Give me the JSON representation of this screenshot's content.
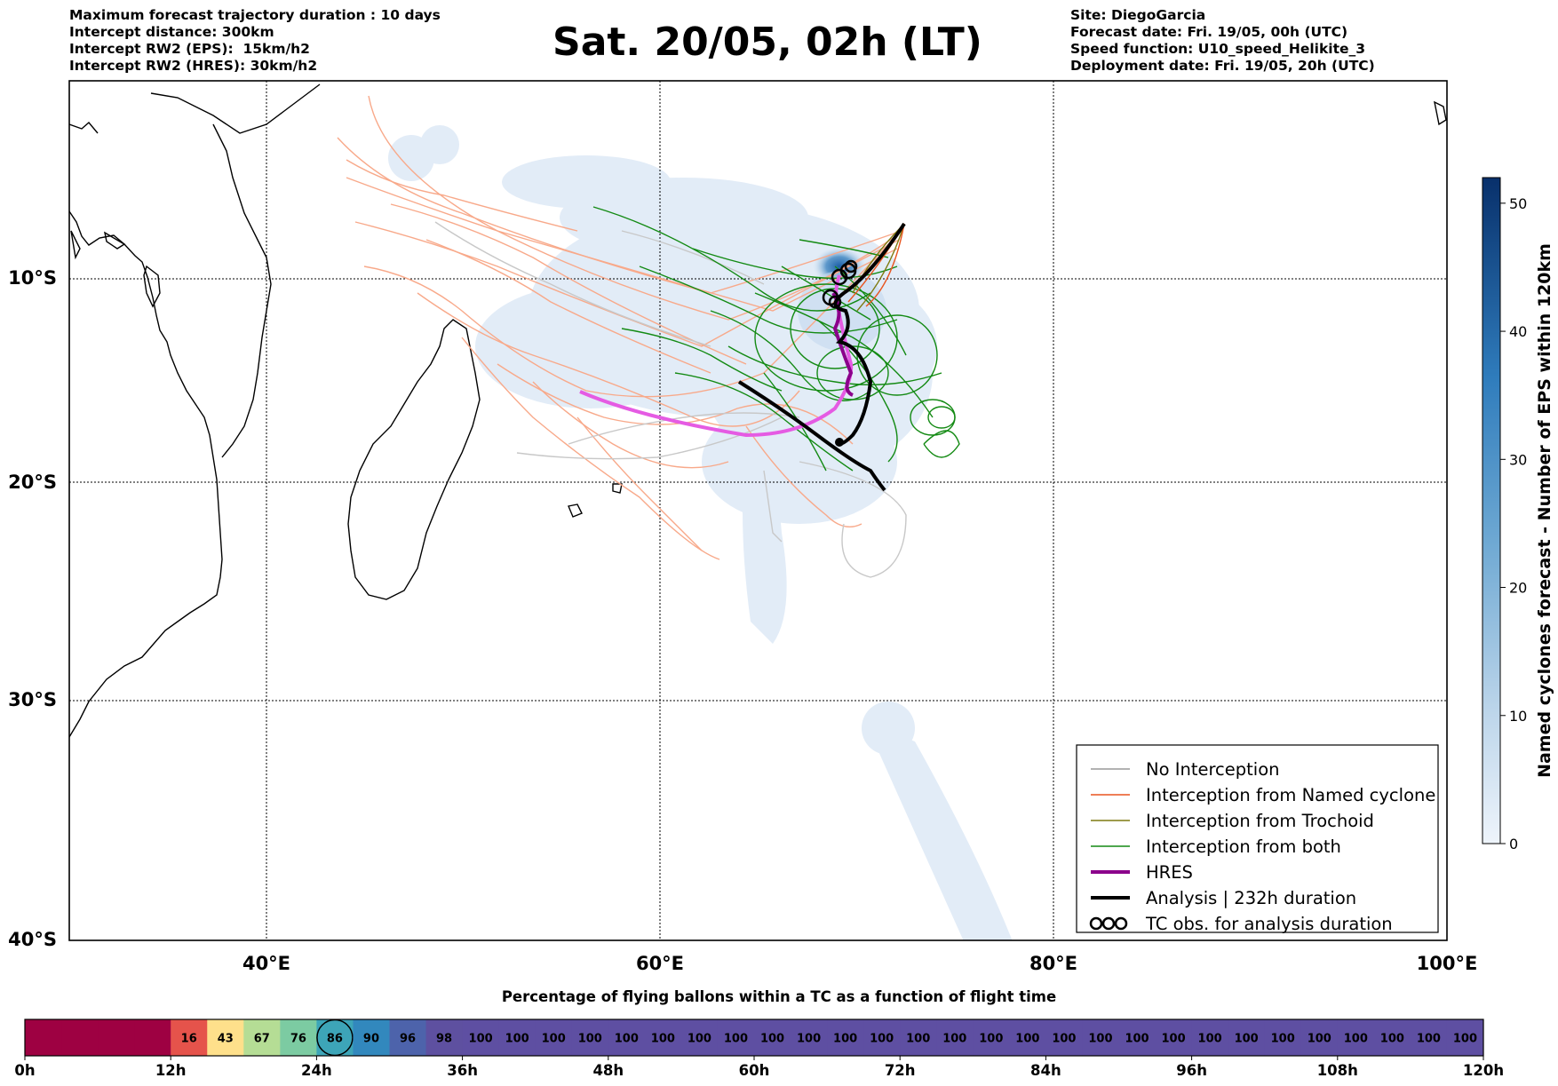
{
  "header_left": [
    "Maximum forecast trajectory duration : 10 days",
    "Intercept distance: 300km",
    "Intercept RW2 (EPS):  15km/h2",
    "Intercept RW2 (HRES): 30km/h2"
  ],
  "header_right": [
    "Site: DiegoGarcia",
    "Forecast date: Fri. 19/05, 00h (UTC)",
    "Speed function: U10_speed_Helikite_3",
    "Deployment date: Fri. 19/05, 20h (UTC)"
  ],
  "main_title": "Sat. 20/05, 02h (LT)",
  "map": {
    "lat_labels": [
      "10°S",
      "20°S",
      "30°S",
      "40°S"
    ],
    "lon_labels": [
      "40°E",
      "60°E",
      "80°E",
      "100°E"
    ]
  },
  "colorbar": {
    "label": "Named cyclones forecast - Number of EPS within 120km",
    "ticks": [
      0,
      10,
      20,
      30,
      40,
      50
    ],
    "range": [
      0,
      52
    ],
    "colors": [
      "#e1ecf7",
      "#08306b"
    ]
  },
  "legend": [
    {
      "label": "No Interception",
      "color": "#999999",
      "kind": "line-thin"
    },
    {
      "label": "Interception from Named cyclone",
      "color": "#e8541e",
      "kind": "line-thin"
    },
    {
      "label": "Interception from Trochoid",
      "color": "#7f7a10",
      "kind": "line-thin"
    },
    {
      "label": "Interception from both",
      "color": "#138a13",
      "kind": "line-thin"
    },
    {
      "label": "HRES",
      "color": "#8b008b",
      "kind": "line-thick"
    },
    {
      "label": "Analysis | 232h duration",
      "color": "#000000",
      "kind": "line-thick"
    },
    {
      "label": "TC obs. for analysis duration",
      "color": "#000000",
      "kind": "tc-symbol"
    }
  ],
  "bottom_bar": {
    "title": "Percentage of flying ballons within a TC as a function of flight time",
    "tick_labels": [
      "0h",
      "12h",
      "24h",
      "36h",
      "48h",
      "60h",
      "72h",
      "84h",
      "96h",
      "108h",
      "120h"
    ],
    "cells": [
      {
        "value": "",
        "color": "#9e0142"
      },
      {
        "value": "",
        "color": "#9e0142"
      },
      {
        "value": "",
        "color": "#9e0142"
      },
      {
        "value": "",
        "color": "#9e0142"
      },
      {
        "value": "16",
        "color": "#e5534b"
      },
      {
        "value": "43",
        "color": "#fee08b"
      },
      {
        "value": "67",
        "color": "#b5dd95"
      },
      {
        "value": "76",
        "color": "#7ccba2"
      },
      {
        "value": "86",
        "color": "#3da5b8",
        "circled": true
      },
      {
        "value": "90",
        "color": "#3288bd"
      },
      {
        "value": "96",
        "color": "#4d63ab"
      },
      {
        "value": "98",
        "color": "#5e50a0"
      },
      {
        "value": "100",
        "color": "#5e4fa2"
      },
      {
        "value": "100",
        "color": "#5e4fa2"
      },
      {
        "value": "100",
        "color": "#5e4fa2"
      },
      {
        "value": "100",
        "color": "#5e4fa2"
      },
      {
        "value": "100",
        "color": "#5e4fa2"
      },
      {
        "value": "100",
        "color": "#5e4fa2"
      },
      {
        "value": "100",
        "color": "#5e4fa2"
      },
      {
        "value": "100",
        "color": "#5e4fa2"
      },
      {
        "value": "100",
        "color": "#5e4fa2"
      },
      {
        "value": "100",
        "color": "#5e4fa2"
      },
      {
        "value": "100",
        "color": "#5e4fa2"
      },
      {
        "value": "100",
        "color": "#5e4fa2"
      },
      {
        "value": "100",
        "color": "#5e4fa2"
      },
      {
        "value": "100",
        "color": "#5e4fa2"
      },
      {
        "value": "100",
        "color": "#5e4fa2"
      },
      {
        "value": "100",
        "color": "#5e4fa2"
      },
      {
        "value": "100",
        "color": "#5e4fa2"
      },
      {
        "value": "100",
        "color": "#5e4fa2"
      },
      {
        "value": "100",
        "color": "#5e4fa2"
      },
      {
        "value": "100",
        "color": "#5e4fa2"
      },
      {
        "value": "100",
        "color": "#5e4fa2"
      },
      {
        "value": "100",
        "color": "#5e4fa2"
      },
      {
        "value": "100",
        "color": "#5e4fa2"
      },
      {
        "value": "100",
        "color": "#5e4fa2"
      },
      {
        "value": "100",
        "color": "#5e4fa2"
      },
      {
        "value": "100",
        "color": "#5e4fa2"
      },
      {
        "value": "100",
        "color": "#5e4fa2"
      },
      {
        "value": "100",
        "color": "#5e4fa2"
      }
    ]
  },
  "chart_data": {
    "type": "map-trajectories",
    "xlim": [
      30,
      100
    ],
    "ylim": [
      -40,
      0
    ],
    "site": {
      "name": "DiegoGarcia",
      "lon": 72.4,
      "lat": -7.3
    },
    "analysis_track": [
      [
        64.1,
        -15.2
      ],
      [
        66.5,
        -16.6
      ],
      [
        69.3,
        -18.2
      ],
      [
        70.8,
        -19.5
      ],
      [
        71.6,
        -20.4
      ]
    ],
    "analysis_track_2": [
      [
        72.4,
        -7.3
      ],
      [
        70.8,
        -9.5
      ],
      [
        69.4,
        -10.9
      ],
      [
        69.8,
        -11.8
      ],
      [
        70.6,
        -12.6
      ],
      [
        71.2,
        -14.5
      ],
      [
        70.9,
        -16.8
      ],
      [
        69.8,
        -18.3
      ],
      [
        69.3,
        -18.0
      ]
    ],
    "hres_track": [
      [
        56.0,
        -15.6
      ],
      [
        58.0,
        -17.0
      ],
      [
        61.0,
        -17.6
      ],
      [
        64.0,
        -17.9
      ],
      [
        66.5,
        -17.6
      ],
      [
        68.6,
        -16.4
      ],
      [
        69.8,
        -15.4
      ],
      [
        69.3,
        -13.5
      ],
      [
        69.2,
        -11.2
      ],
      [
        70.1,
        -10.2
      ],
      [
        72.4,
        -7.3
      ]
    ]
  }
}
